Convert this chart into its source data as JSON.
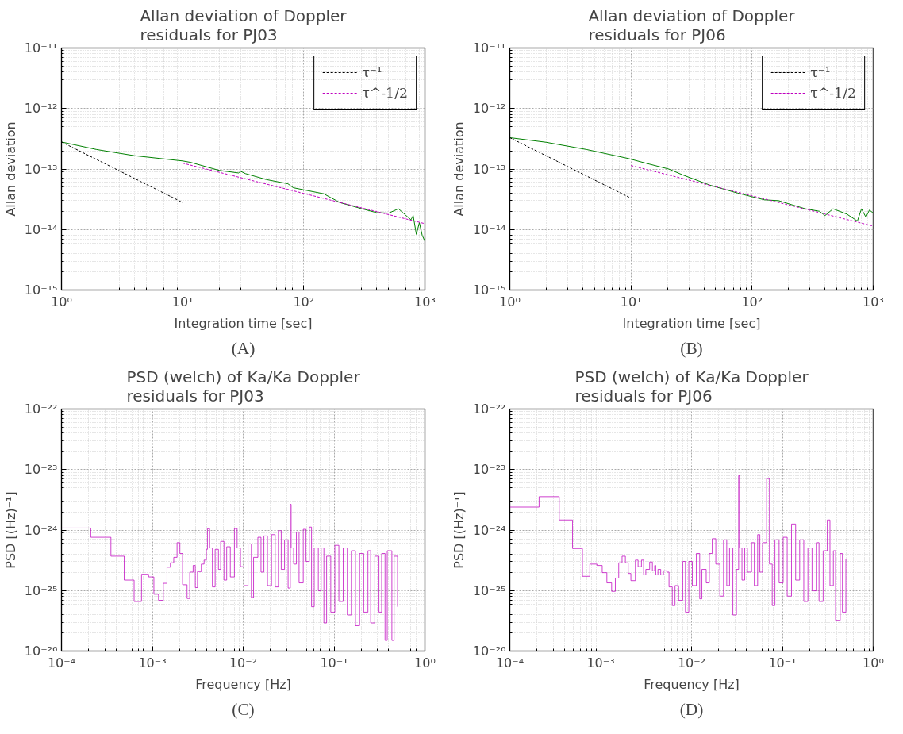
{
  "chart_data": [
    {
      "type": "line",
      "title": "Allan deviation of Doppler\nresiduals for PJ03",
      "xlabel": "Integration time [sec]",
      "ylabel": "Allan deviation",
      "log": "xy",
      "grid": true,
      "legend": "top right",
      "xlim": [
        1,
        1000
      ],
      "ylim": [
        1e-15,
        1e-11
      ],
      "xticks": [
        {
          "value": 1,
          "label": "10⁰"
        },
        {
          "value": 10,
          "label": "10¹"
        },
        {
          "value": 100,
          "label": "10²"
        },
        {
          "value": 1000,
          "label": "10³"
        }
      ],
      "yticks": [
        {
          "value": 1e-15,
          "label": "10⁻¹⁵"
        },
        {
          "value": 1e-14,
          "label": "10⁻¹⁴"
        },
        {
          "value": 1e-13,
          "label": "10⁻¹³"
        },
        {
          "value": 1e-12,
          "label": "10⁻¹²"
        },
        {
          "value": 1e-11,
          "label": "10⁻¹¹"
        }
      ],
      "annotations": [
        "(A)"
      ],
      "series": [
        {
          "color": "#008000",
          "x": [
            1,
            1.95,
            4.0,
            10,
            11.6,
            20,
            29,
            30,
            33,
            49,
            74,
            82,
            146,
            198,
            302,
            400,
            503,
            605,
            700,
            767,
            800,
            850,
            900,
            950,
            1000
          ],
          "values": [
            2.8e-13,
            2.1e-13,
            1.66e-13,
            1.36e-13,
            1.29e-13,
            9.5e-14,
            8.6e-14,
            9.2e-14,
            8.4e-14,
            6.7e-14,
            5.7e-14,
            4.9e-14,
            3.9e-14,
            2.8e-14,
            2.2e-14,
            1.9e-14,
            1.87e-14,
            2.2e-14,
            1.7e-14,
            1.45e-14,
            1.7e-14,
            8.3e-15,
            1.3e-14,
            8e-15,
            6.4e-15
          ]
        },
        {
          "name": "τ⁻¹",
          "color": "#000000",
          "line_style": "dashed",
          "x": [
            1,
            10
          ],
          "values": [
            2.8e-13,
            2.8e-14
          ]
        },
        {
          "name": "τ^-1/2",
          "color": "#bf00bf",
          "line_style": "dashed",
          "x": [
            10,
            1000
          ],
          "values": [
            1.25e-13,
            1.25e-14
          ]
        }
      ]
    },
    {
      "type": "line",
      "title": "Allan deviation of Doppler\nresiduals for PJ06",
      "xlabel": "Integration time [sec]",
      "ylabel": "Allan deviation",
      "log": "xy",
      "grid": true,
      "legend": "top right",
      "xlim": [
        1,
        1000
      ],
      "ylim": [
        1e-15,
        1e-11
      ],
      "xticks": [
        {
          "value": 1,
          "label": "10⁰"
        },
        {
          "value": 10,
          "label": "10¹"
        },
        {
          "value": 100,
          "label": "10²"
        },
        {
          "value": 1000,
          "label": "10³"
        }
      ],
      "yticks": [
        {
          "value": 1e-15,
          "label": "10⁻¹⁵"
        },
        {
          "value": 1e-14,
          "label": "10⁻¹⁴"
        },
        {
          "value": 1e-13,
          "label": "10⁻¹³"
        },
        {
          "value": 1e-12,
          "label": "10⁻¹²"
        },
        {
          "value": 1e-11,
          "label": "10⁻¹¹"
        }
      ],
      "annotations": [
        "(B)"
      ],
      "series": [
        {
          "color": "#008000",
          "x": [
            1,
            1.99,
            4.3,
            9.4,
            14.3,
            20.5,
            26.7,
            45,
            76,
            126,
            165,
            275,
            360,
            400,
            466,
            605,
            740,
            800,
            870,
            930,
            1000
          ],
          "values": [
            3.3e-13,
            2.77e-13,
            2.1e-13,
            1.5e-13,
            1.2e-13,
            1e-13,
            8e-14,
            5.4e-14,
            4e-14,
            3.1e-14,
            3e-14,
            2.2e-14,
            2e-14,
            1.7e-14,
            2.2e-14,
            1.8e-14,
            1.38e-14,
            2.2e-14,
            1.6e-14,
            2.1e-14,
            1.87e-14
          ]
        },
        {
          "name": "τ⁻¹",
          "color": "#000000",
          "line_style": "dashed",
          "x": [
            1,
            10
          ],
          "values": [
            3.3e-13,
            3.3e-14
          ]
        },
        {
          "name": "τ^-1/2",
          "color": "#bf00bf",
          "line_style": "dashed",
          "x": [
            10,
            1000
          ],
          "values": [
            1.14e-13,
            1.14e-14
          ]
        }
      ]
    },
    {
      "type": "step",
      "title": "PSD (welch) of Ka/Ka Doppler\nresiduals for PJ03",
      "xlabel": "Frequency [Hz]",
      "ylabel": "PSD [(Hz)⁻¹]",
      "log": "xy",
      "grid": true,
      "xlim": [
        0.0001,
        1
      ],
      "ylim": [
        1e-26,
        1e-22
      ],
      "xticks": [
        {
          "value": 0.0001,
          "label": "10⁻⁴"
        },
        {
          "value": 0.001,
          "label": "10⁻³"
        },
        {
          "value": 0.01,
          "label": "10⁻²"
        },
        {
          "value": 0.1,
          "label": "10⁻¹"
        },
        {
          "value": 1,
          "label": "10⁰"
        }
      ],
      "yticks": [
        {
          "value": 1e-26,
          "label": "10⁻²⁶"
        },
        {
          "value": 1e-25,
          "label": "10⁻²⁵"
        },
        {
          "value": 1e-24,
          "label": "10⁻²⁴"
        },
        {
          "value": 1e-23,
          "label": "10⁻²³"
        },
        {
          "value": 1e-22,
          "label": "10⁻²²"
        }
      ],
      "annotations": [
        "(C)"
      ],
      "series": [
        {
          "color": "#bf00bf",
          "x": [
            0.0001,
            0.00021,
            0.00035,
            0.00049,
            0.00063,
            0.00076,
            0.00091,
            0.00104,
            0.00117,
            0.00132,
            0.00145,
            0.00158,
            0.00172,
            0.00187,
            0.00201,
            0.00215,
            0.00241,
            0.00258,
            0.00281,
            0.00297,
            0.00314,
            0.00346,
            0.00371,
            0.00393,
            0.00404,
            0.00427,
            0.00458,
            0.00491,
            0.00534,
            0.00565,
            0.00614,
            0.00658,
            0.00721,
            0.008,
            0.00857,
            0.00933,
            0.0102,
            0.0113,
            0.0123,
            0.013,
            0.0145,
            0.0157,
            0.0169,
            0.0185,
            0.0205,
            0.0225,
            0.0244,
            0.0262,
            0.0285,
            0.0312,
            0.033,
            0.0337,
            0.0359,
            0.0385,
            0.0412,
            0.0458,
            0.0491,
            0.0534,
            0.0565,
            0.0605,
            0.0671,
            0.0721,
            0.0773,
            0.0828,
            0.092,
            0.102,
            0.113,
            0.126,
            0.14,
            0.155,
            0.172,
            0.191,
            0.212,
            0.236,
            0.253,
            0.281,
            0.312,
            0.334,
            0.364,
            0.385,
            0.433,
            0.458,
            0.5
          ],
          "values": [
            1.08e-24,
            7.6e-25,
            3.7e-25,
            1.49e-25,
            6.6e-26,
            1.86e-25,
            1.68e-25,
            8.7e-26,
            6.9e-26,
            1.32e-25,
            2.43e-25,
            2.88e-25,
            3.54e-25,
            6.2e-25,
            4.1e-25,
            1.25e-25,
            7.4e-26,
            2.02e-25,
            2.6e-25,
            1.12e-25,
            2.06e-25,
            2.74e-25,
            3.19e-25,
            4.8e-25,
            1.05e-24,
            5.06e-25,
            1.15e-25,
            4.8e-25,
            2.24e-25,
            6.5e-25,
            1.49e-25,
            5.3e-25,
            1.68e-25,
            1.06e-24,
            5.06e-25,
            2.48e-25,
            1.21e-25,
            5.9e-25,
            7.7e-26,
            3.54e-25,
            7.6e-25,
            2.02e-25,
            8e-25,
            1.21e-25,
            8.4e-25,
            1.15e-25,
            9.8e-25,
            2.24e-25,
            6.9e-25,
            1.1e-25,
            2.66e-24,
            5.06e-25,
            2.74e-25,
            9.3e-25,
            1.34e-25,
            1.03e-24,
            3.03e-25,
            1.12e-24,
            5.4e-26,
            5.06e-25,
            9.9e-26,
            5.06e-25,
            2.92e-26,
            3.7e-25,
            4.4e-26,
            5.6e-25,
            6.6e-26,
            5.06e-25,
            3.95e-26,
            4.56e-25,
            2.63e-26,
            4.1e-25,
            4.4e-26,
            4.56e-25,
            2.92e-26,
            3.7e-25,
            4.4e-26,
            4.1e-25,
            1.5e-26,
            4.56e-25,
            1.5e-26,
            3.7e-25,
            5.4e-26
          ]
        }
      ]
    },
    {
      "type": "step",
      "title": "PSD (welch) of Ka/Ka Doppler\nresiduals for PJ06",
      "xlabel": "Frequency [Hz]",
      "ylabel": "PSD [(Hz)⁻¹]",
      "log": "xy",
      "grid": true,
      "xlim": [
        0.0001,
        1
      ],
      "ylim": [
        1e-26,
        1e-22
      ],
      "xticks": [
        {
          "value": 0.0001,
          "label": "10⁻⁴"
        },
        {
          "value": 0.001,
          "label": "10⁻³"
        },
        {
          "value": 0.01,
          "label": "10⁻²"
        },
        {
          "value": 0.1,
          "label": "10⁻¹"
        },
        {
          "value": 1,
          "label": "10⁰"
        }
      ],
      "yticks": [
        {
          "value": 1e-26,
          "label": "10⁻²⁶"
        },
        {
          "value": 1e-25,
          "label": "10⁻²⁵"
        },
        {
          "value": 1e-24,
          "label": "10⁻²⁴"
        },
        {
          "value": 1e-23,
          "label": "10⁻²³"
        },
        {
          "value": 1e-22,
          "label": "10⁻²²"
        }
      ],
      "annotations": [
        "(D)"
      ],
      "series": [
        {
          "color": "#bf00bf",
          "x": [
            0.0001,
            0.00021,
            0.00035,
            0.00049,
            0.00063,
            0.00076,
            0.00091,
            0.00104,
            0.00117,
            0.00132,
            0.00145,
            0.00158,
            0.00172,
            0.00187,
            0.00201,
            0.00215,
            0.00241,
            0.00258,
            0.00281,
            0.00297,
            0.00314,
            0.00346,
            0.00371,
            0.00393,
            0.00404,
            0.00427,
            0.00458,
            0.00491,
            0.00534,
            0.00565,
            0.00614,
            0.00658,
            0.00721,
            0.008,
            0.00857,
            0.00933,
            0.0102,
            0.0113,
            0.0123,
            0.013,
            0.0145,
            0.0157,
            0.0169,
            0.0185,
            0.0205,
            0.0225,
            0.0244,
            0.0262,
            0.0285,
            0.0312,
            0.033,
            0.0337,
            0.0359,
            0.0385,
            0.0412,
            0.0458,
            0.0491,
            0.0534,
            0.0565,
            0.0605,
            0.0671,
            0.0721,
            0.0773,
            0.0828,
            0.092,
            0.102,
            0.113,
            0.126,
            0.14,
            0.155,
            0.172,
            0.191,
            0.212,
            0.236,
            0.253,
            0.281,
            0.312,
            0.334,
            0.364,
            0.385,
            0.433,
            0.458,
            0.5
          ],
          "values": [
            2.4e-24,
            3.57e-24,
            1.47e-24,
            4.95e-25,
            1.72e-25,
            2.74e-25,
            2.6e-25,
            1.98e-25,
            1.34e-25,
            9.7e-26,
            1.61e-25,
            2.88e-25,
            3.7e-25,
            2.88e-25,
            1.92e-25,
            1.46e-25,
            3.19e-25,
            2.48e-25,
            3.19e-25,
            1.82e-25,
            2.24e-25,
            2.97e-25,
            2.12e-25,
            2.6e-25,
            1.82e-25,
            2.24e-25,
            1.82e-25,
            2.12e-25,
            2.02e-25,
            1.15e-25,
            5.65e-26,
            1.21e-25,
            6.9e-26,
            3.03e-25,
            4.4e-26,
            3.03e-25,
            1.21e-25,
            4.1e-25,
            7.3e-26,
            2.24e-25,
            1.34e-25,
            4.1e-25,
            7.2e-25,
            2.74e-25,
            8.1e-26,
            6.9e-25,
            1.21e-25,
            5.06e-25,
            3.95e-26,
            2.24e-25,
            7.9e-24,
            5.06e-25,
            1.49e-25,
            5.06e-25,
            2.02e-25,
            6.2e-25,
            1.21e-25,
            8.4e-25,
            2.02e-25,
            6.2e-25,
            7.1e-24,
            2.74e-25,
            5.65e-26,
            6.9e-25,
            1.34e-25,
            7.6e-25,
            8.1e-26,
            1.26e-24,
            1.49e-25,
            6.9e-25,
            6.6e-26,
            5.06e-25,
            9.9e-26,
            6.2e-25,
            6.6e-26,
            4.56e-25,
            1.47e-24,
            1.21e-25,
            4.56e-25,
            3.23e-26,
            4.1e-25,
            4.4e-26,
            3.35e-25
          ]
        }
      ]
    }
  ]
}
